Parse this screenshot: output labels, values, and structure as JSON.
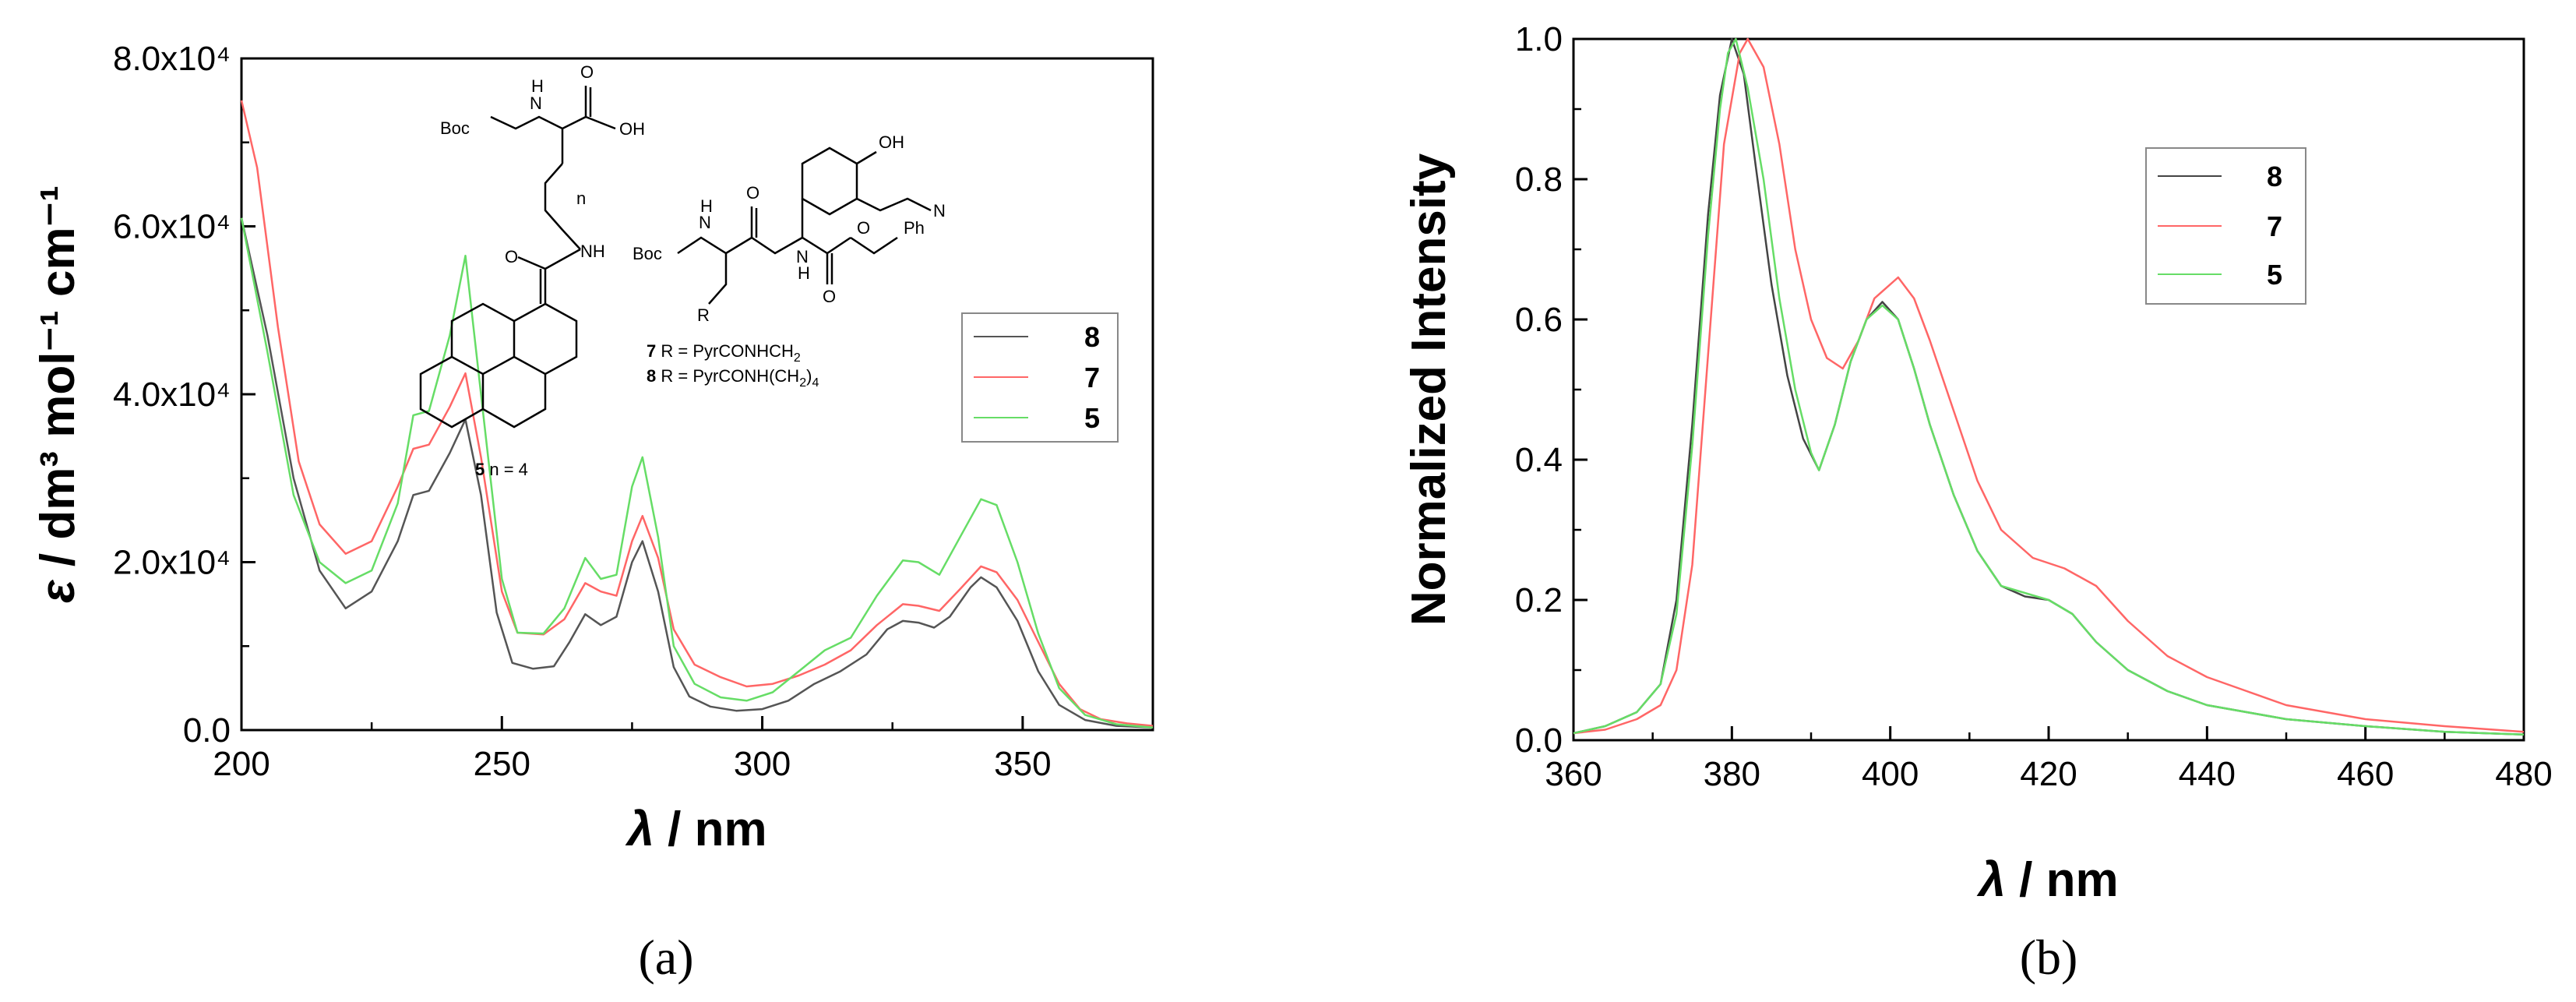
{
  "chart_data": [
    {
      "type": "line",
      "panel_label": "(a)",
      "xlabel_symbol": "λ",
      "xlabel_unit": " / nm",
      "ylabel_symbol": "ε",
      "ylabel_unit": " / dm³ mol⁻¹ cm⁻¹",
      "xlim": [
        200,
        375
      ],
      "ylim": [
        0,
        80000
      ],
      "x_ticks": [
        200,
        250,
        300,
        350
      ],
      "y_ticks": [
        {
          "value": 0,
          "label": "0.0"
        },
        {
          "value": 20000,
          "label": "2.0x10⁴"
        },
        {
          "value": 40000,
          "label": "4.0x10⁴"
        },
        {
          "value": 60000,
          "label": "6.0x10⁴"
        },
        {
          "value": 80000,
          "label": "8.0x10⁴"
        }
      ],
      "legend_position": "right",
      "series": [
        {
          "name": "8",
          "color": "#555555",
          "points": [
            [
              200,
              61000
            ],
            [
              205,
              47000
            ],
            [
              210,
              30000
            ],
            [
              215,
              19000
            ],
            [
              220,
              14500
            ],
            [
              225,
              16500
            ],
            [
              230,
              22500
            ],
            [
              233,
              28000
            ],
            [
              236,
              28500
            ],
            [
              240,
              33000
            ],
            [
              243,
              37000
            ],
            [
              246,
              28000
            ],
            [
              249,
              14000
            ],
            [
              252,
              8000
            ],
            [
              256,
              7300
            ],
            [
              260,
              7600
            ],
            [
              263,
              10500
            ],
            [
              266,
              13800
            ],
            [
              269,
              12500
            ],
            [
              272,
              13500
            ],
            [
              275,
              20000
            ],
            [
              277,
              22500
            ],
            [
              280,
              16500
            ],
            [
              283,
              7500
            ],
            [
              286,
              4000
            ],
            [
              290,
              2800
            ],
            [
              295,
              2300
            ],
            [
              300,
              2500
            ],
            [
              305,
              3500
            ],
            [
              310,
              5500
            ],
            [
              315,
              7000
            ],
            [
              320,
              9000
            ],
            [
              324,
              12000
            ],
            [
              327,
              13000
            ],
            [
              330,
              12800
            ],
            [
              333,
              12200
            ],
            [
              336,
              13500
            ],
            [
              340,
              17000
            ],
            [
              342,
              18200
            ],
            [
              345,
              17000
            ],
            [
              349,
              13000
            ],
            [
              353,
              7000
            ],
            [
              357,
              3000
            ],
            [
              362,
              1200
            ],
            [
              368,
              500
            ],
            [
              375,
              300
            ]
          ]
        },
        {
          "name": "7",
          "color": "#ff6666",
          "points": [
            [
              200,
              75000
            ],
            [
              203,
              67000
            ],
            [
              207,
              48000
            ],
            [
              211,
              32000
            ],
            [
              215,
              24500
            ],
            [
              220,
              21000
            ],
            [
              225,
              22500
            ],
            [
              230,
              29000
            ],
            [
              233,
              33500
            ],
            [
              236,
              34000
            ],
            [
              240,
              38500
            ],
            [
              243,
              42500
            ],
            [
              246,
              32500
            ],
            [
              250,
              16500
            ],
            [
              253,
              11600
            ],
            [
              258,
              11400
            ],
            [
              262,
              13200
            ],
            [
              266,
              17500
            ],
            [
              269,
              16500
            ],
            [
              272,
              16000
            ],
            [
              275,
              22500
            ],
            [
              277,
              25500
            ],
            [
              280,
              20500
            ],
            [
              283,
              12000
            ],
            [
              287,
              7800
            ],
            [
              292,
              6300
            ],
            [
              297,
              5200
            ],
            [
              302,
              5500
            ],
            [
              307,
              6500
            ],
            [
              312,
              7800
            ],
            [
              317,
              9500
            ],
            [
              322,
              12500
            ],
            [
              327,
              15000
            ],
            [
              330,
              14800
            ],
            [
              334,
              14200
            ],
            [
              338,
              16800
            ],
            [
              342,
              19500
            ],
            [
              345,
              18800
            ],
            [
              349,
              15500
            ],
            [
              353,
              10500
            ],
            [
              357,
              5500
            ],
            [
              361,
              2500
            ],
            [
              365,
              1300
            ],
            [
              370,
              800
            ],
            [
              375,
              500
            ]
          ]
        },
        {
          "name": "5",
          "color": "#66dd66",
          "points": [
            [
              200,
              61000
            ],
            [
              205,
              45000
            ],
            [
              210,
              28000
            ],
            [
              215,
              20000
            ],
            [
              220,
              17500
            ],
            [
              225,
              19000
            ],
            [
              230,
              27000
            ],
            [
              233,
              37500
            ],
            [
              236,
              38000
            ],
            [
              240,
              47000
            ],
            [
              243,
              56500
            ],
            [
              246,
              40000
            ],
            [
              250,
              18000
            ],
            [
              253,
              11600
            ],
            [
              258,
              11500
            ],
            [
              262,
              14500
            ],
            [
              266,
              20500
            ],
            [
              269,
              18000
            ],
            [
              272,
              18500
            ],
            [
              275,
              29000
            ],
            [
              277,
              32500
            ],
            [
              280,
              23000
            ],
            [
              283,
              10000
            ],
            [
              287,
              5500
            ],
            [
              292,
              3900
            ],
            [
              297,
              3500
            ],
            [
              302,
              4500
            ],
            [
              307,
              7000
            ],
            [
              312,
              9500
            ],
            [
              317,
              11000
            ],
            [
              322,
              16000
            ],
            [
              327,
              20200
            ],
            [
              330,
              20000
            ],
            [
              334,
              18500
            ],
            [
              338,
              23000
            ],
            [
              342,
              27500
            ],
            [
              345,
              26800
            ],
            [
              349,
              20000
            ],
            [
              353,
              11500
            ],
            [
              357,
              5000
            ],
            [
              362,
              1800
            ],
            [
              368,
              700
            ],
            [
              375,
              300
            ]
          ]
        }
      ]
    },
    {
      "type": "line",
      "panel_label": "(b)",
      "xlabel_symbol": "λ",
      "xlabel_unit": " / nm",
      "ylabel": "Normalized Intensity",
      "xlim": [
        360,
        480
      ],
      "ylim": [
        0,
        1.0
      ],
      "x_ticks": [
        360,
        380,
        400,
        420,
        440,
        460,
        480
      ],
      "y_ticks": [
        {
          "value": 0,
          "label": "0.0"
        },
        {
          "value": 0.2,
          "label": "0.2"
        },
        {
          "value": 0.4,
          "label": "0.4"
        },
        {
          "value": 0.6,
          "label": "0.6"
        },
        {
          "value": 0.8,
          "label": "0.8"
        },
        {
          "value": 1.0,
          "label": "1.0"
        }
      ],
      "legend_position": "top-right",
      "series": [
        {
          "name": "8",
          "color": "#444444",
          "points": [
            [
              360,
              0.01
            ],
            [
              364,
              0.02
            ],
            [
              368,
              0.04
            ],
            [
              371,
              0.08
            ],
            [
              373,
              0.2
            ],
            [
              375,
              0.45
            ],
            [
              377,
              0.75
            ],
            [
              378.5,
              0.92
            ],
            [
              380,
              1.0
            ],
            [
              381.5,
              0.95
            ],
            [
              383,
              0.82
            ],
            [
              385,
              0.65
            ],
            [
              387,
              0.52
            ],
            [
              389,
              0.43
            ],
            [
              391,
              0.385
            ],
            [
              393,
              0.45
            ],
            [
              395,
              0.54
            ],
            [
              397,
              0.6
            ],
            [
              399,
              0.625
            ],
            [
              401,
              0.6
            ],
            [
              403,
              0.53
            ],
            [
              405,
              0.45
            ],
            [
              408,
              0.35
            ],
            [
              411,
              0.27
            ],
            [
              414,
              0.22
            ],
            [
              417,
              0.205
            ],
            [
              420,
              0.2
            ],
            [
              423,
              0.18
            ],
            [
              426,
              0.14
            ],
            [
              430,
              0.1
            ],
            [
              435,
              0.07
            ],
            [
              440,
              0.05
            ],
            [
              450,
              0.03
            ],
            [
              460,
              0.02
            ],
            [
              470,
              0.012
            ],
            [
              480,
              0.008
            ]
          ]
        },
        {
          "name": "7",
          "color": "#ff6666",
          "points": [
            [
              360,
              0.01
            ],
            [
              364,
              0.015
            ],
            [
              368,
              0.03
            ],
            [
              371,
              0.05
            ],
            [
              373,
              0.1
            ],
            [
              375,
              0.25
            ],
            [
              377,
              0.55
            ],
            [
              379,
              0.85
            ],
            [
              381,
              0.98
            ],
            [
              382,
              1.0
            ],
            [
              384,
              0.96
            ],
            [
              386,
              0.85
            ],
            [
              388,
              0.7
            ],
            [
              390,
              0.6
            ],
            [
              392,
              0.545
            ],
            [
              394,
              0.53
            ],
            [
              396,
              0.57
            ],
            [
              398,
              0.63
            ],
            [
              401,
              0.66
            ],
            [
              403,
              0.63
            ],
            [
              405,
              0.57
            ],
            [
              408,
              0.47
            ],
            [
              411,
              0.37
            ],
            [
              414,
              0.3
            ],
            [
              418,
              0.26
            ],
            [
              422,
              0.245
            ],
            [
              426,
              0.22
            ],
            [
              430,
              0.17
            ],
            [
              435,
              0.12
            ],
            [
              440,
              0.09
            ],
            [
              445,
              0.07
            ],
            [
              450,
              0.05
            ],
            [
              460,
              0.03
            ],
            [
              470,
              0.02
            ],
            [
              480,
              0.012
            ]
          ]
        },
        {
          "name": "5",
          "color": "#66dd66",
          "points": [
            [
              360,
              0.01
            ],
            [
              364,
              0.02
            ],
            [
              368,
              0.04
            ],
            [
              371,
              0.08
            ],
            [
              373,
              0.18
            ],
            [
              375,
              0.42
            ],
            [
              377,
              0.72
            ],
            [
              378.5,
              0.9
            ],
            [
              379.5,
              0.98
            ],
            [
              380.5,
              1.0
            ],
            [
              382,
              0.93
            ],
            [
              384,
              0.8
            ],
            [
              386,
              0.63
            ],
            [
              388,
              0.5
            ],
            [
              390,
              0.41
            ],
            [
              391,
              0.385
            ],
            [
              393,
              0.45
            ],
            [
              395,
              0.54
            ],
            [
              397,
              0.6
            ],
            [
              399,
              0.62
            ],
            [
              401,
              0.6
            ],
            [
              403,
              0.53
            ],
            [
              405,
              0.45
            ],
            [
              408,
              0.35
            ],
            [
              411,
              0.27
            ],
            [
              414,
              0.22
            ],
            [
              417,
              0.21
            ],
            [
              420,
              0.2
            ],
            [
              423,
              0.18
            ],
            [
              426,
              0.14
            ],
            [
              430,
              0.1
            ],
            [
              435,
              0.07
            ],
            [
              440,
              0.05
            ],
            [
              450,
              0.03
            ],
            [
              460,
              0.02
            ],
            [
              470,
              0.012
            ],
            [
              480,
              0.008
            ]
          ]
        }
      ]
    }
  ],
  "structures": {
    "boc_1": "Boc",
    "nh_1": "N",
    "h_1": "H",
    "o_1": "O",
    "oh_1": "OH",
    "n_sub": "n",
    "nh_2": "NH",
    "o_2": "O",
    "label_5": "5",
    "label_5_rest": " n = 4",
    "oh_2": "OH",
    "n_dim": "N",
    "boc_2": "Boc",
    "nh_3": "N",
    "h_3": "H",
    "o_3": "O",
    "nh_4": "N",
    "h_4": "H",
    "o_4": "O",
    "o_5": "O",
    "ph": "Ph",
    "r": "R",
    "label_7": "7",
    "label_7_rest": " R = PyrCONHCH",
    "label_7_sub": "2",
    "label_8": "8",
    "label_8_rest": " R = PyrCONH(CH",
    "label_8_sub": "2",
    "label_8_end": ")",
    "label_8_sub2": "4"
  }
}
